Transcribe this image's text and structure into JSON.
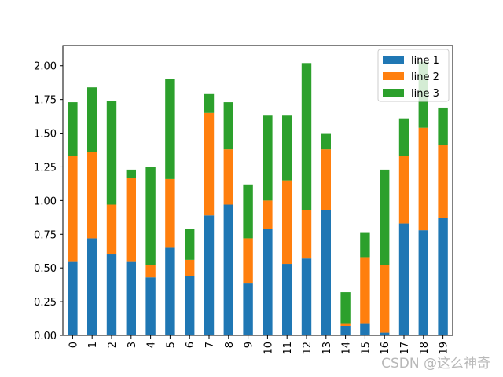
{
  "chart_data": {
    "type": "bar",
    "stacked": true,
    "categories": [
      "0",
      "1",
      "2",
      "3",
      "4",
      "5",
      "6",
      "7",
      "8",
      "9",
      "10",
      "11",
      "12",
      "13",
      "14",
      "15",
      "16",
      "17",
      "18",
      "19"
    ],
    "series": [
      {
        "name": "line 1",
        "color": "#1f77b4",
        "values": [
          0.55,
          0.72,
          0.6,
          0.55,
          0.43,
          0.65,
          0.44,
          0.89,
          0.97,
          0.39,
          0.79,
          0.53,
          0.57,
          0.93,
          0.07,
          0.09,
          0.02,
          0.83,
          0.78,
          0.87
        ]
      },
      {
        "name": "line 2",
        "color": "#ff7f0e",
        "values": [
          0.78,
          0.64,
          0.37,
          0.62,
          0.09,
          0.51,
          0.12,
          0.76,
          0.41,
          0.33,
          0.21,
          0.62,
          0.36,
          0.45,
          0.02,
          0.49,
          0.5,
          0.5,
          0.76,
          0.54
        ]
      },
      {
        "name": "line 3",
        "color": "#2ca02c",
        "values": [
          0.4,
          0.48,
          0.77,
          0.06,
          0.73,
          0.74,
          0.23,
          0.14,
          0.35,
          0.4,
          0.63,
          0.48,
          1.09,
          0.12,
          0.23,
          0.18,
          0.71,
          0.28,
          0.49,
          0.28
        ]
      }
    ],
    "ylim": [
      0,
      2.15
    ],
    "yticks": [
      0.0,
      0.25,
      0.5,
      0.75,
      1.0,
      1.25,
      1.5,
      1.75,
      2.0
    ],
    "ytick_labels": [
      "0.00",
      "0.25",
      "0.50",
      "0.75",
      "1.00",
      "1.25",
      "1.50",
      "1.75",
      "2.00"
    ],
    "title": "",
    "xlabel": "",
    "ylabel": "",
    "legend_position": "top-right",
    "grid": false
  },
  "watermark": "CSDN @这么神奇"
}
